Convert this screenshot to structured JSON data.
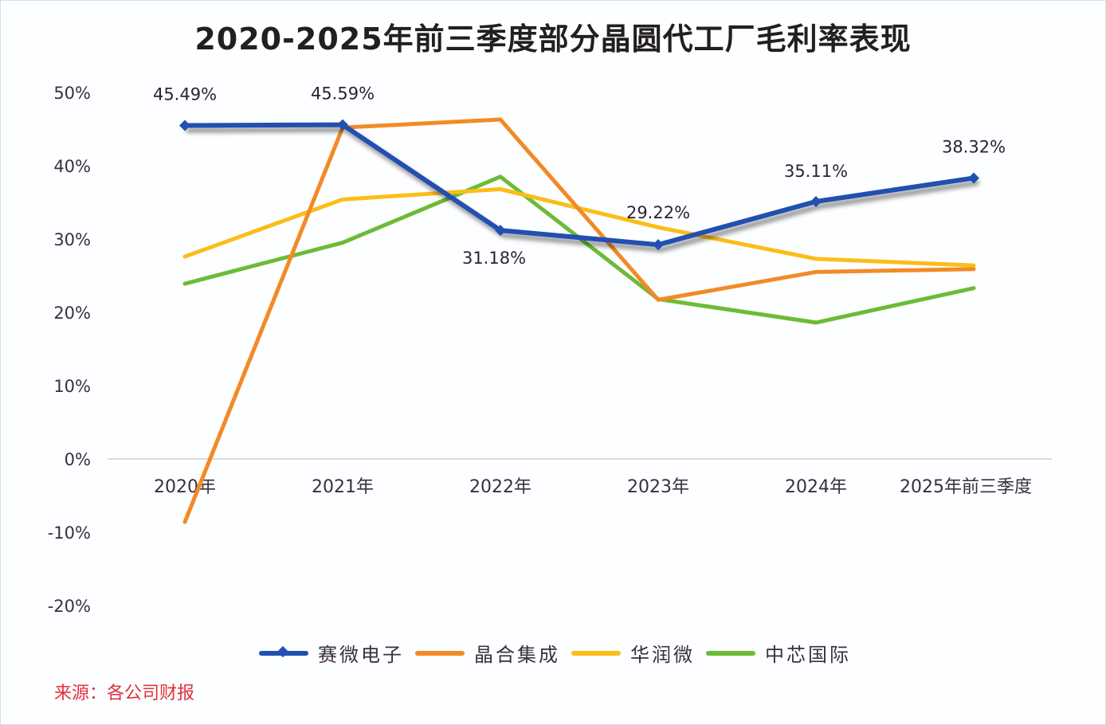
{
  "source_note": "来源：各公司财报",
  "chart_data": {
    "type": "line",
    "title": "2020-2025年前三季度部分晶圆代工厂毛利率表现",
    "xlabel": "",
    "ylabel": "",
    "categories": [
      "2020年",
      "2021年",
      "2022年",
      "2023年",
      "2024年",
      "2025年前三季度"
    ],
    "ylim": [
      -20,
      50
    ],
    "yticks": [
      50,
      40,
      30,
      20,
      10,
      0,
      -10,
      -20
    ],
    "ytick_labels": [
      "50%",
      "40%",
      "30%",
      "20%",
      "10%",
      "0%",
      "-10%",
      "-20%"
    ],
    "grid": false,
    "zero_line": true,
    "legend_position": "bottom",
    "series": [
      {
        "name": "赛微电子",
        "color": "#2150b0",
        "marker": "diamond",
        "values": [
          45.49,
          45.59,
          31.18,
          29.22,
          35.11,
          38.32
        ],
        "data_labels": [
          "45.49%",
          "45.59%",
          "31.18%",
          "29.22%",
          "35.11%",
          "38.32%"
        ]
      },
      {
        "name": "晶合集成",
        "color": "#f28a26",
        "marker": "none",
        "values": [
          -8.6,
          45.2,
          46.3,
          21.7,
          25.5,
          25.9
        ]
      },
      {
        "name": "华润微",
        "color": "#fbbd18",
        "marker": "none",
        "values": [
          27.6,
          35.4,
          36.8,
          31.6,
          27.3,
          26.4
        ]
      },
      {
        "name": "中芯国际",
        "color": "#6dbb36",
        "marker": "none",
        "values": [
          23.9,
          29.5,
          38.5,
          21.8,
          18.6,
          23.3
        ]
      }
    ]
  }
}
